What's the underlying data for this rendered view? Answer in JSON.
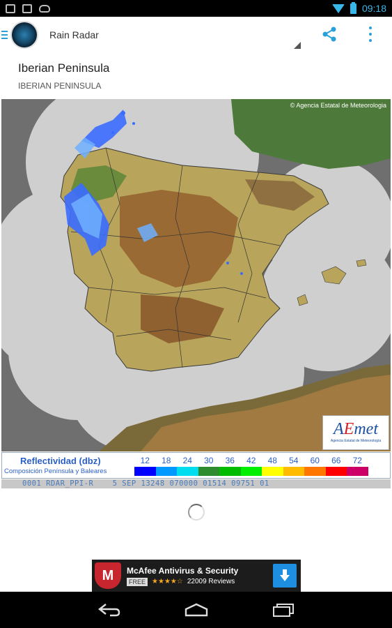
{
  "status_bar": {
    "time": "09:18",
    "left_icons": [
      "picture-icon",
      "sd-card-icon",
      "game-controller-icon"
    ],
    "right_icons": [
      "wifi-icon",
      "battery-charging-icon"
    ]
  },
  "action_bar": {
    "title": "Rain Radar",
    "icons": [
      "app-logo-icon",
      "share-icon",
      "overflow-menu-icon"
    ]
  },
  "region": {
    "title": "Iberian Peninsula",
    "subtitle": "IBERIAN PENINSULA"
  },
  "radar_image": {
    "copyright": "© Agencia Estatal de Meteorologia",
    "logo_text_a": "A",
    "logo_text_e": "E",
    "logo_text_rest": "met",
    "logo_caption": "Agencia Estatal de Meteorología"
  },
  "legend": {
    "title": "Reflectividad (dbz)",
    "subtitle": "Composición Península y Baleares",
    "scale_values": [
      "12",
      "18",
      "24",
      "30",
      "36",
      "42",
      "48",
      "54",
      "60",
      "66",
      "72"
    ],
    "scale_colors": [
      "#0000ff",
      "#0099ff",
      "#00ddee",
      "#2e8b2e",
      "#00bb00",
      "#00ee00",
      "#ffff00",
      "#ffbb00",
      "#ff7700",
      "#ff0000",
      "#cc0066"
    ]
  },
  "info_strip": {
    "text": "0001 RDAR_PPI-R    5 SEP 13248 070000 01514 09751 01"
  },
  "ad": {
    "title": "McAfee Antivirus & Security",
    "free_label": "FREE",
    "stars": "★★★★☆",
    "reviews": "22009 Reviews",
    "logo_letter": "M"
  },
  "nav_bar": {
    "icons": [
      "back-icon",
      "home-icon",
      "recent-apps-icon"
    ]
  }
}
